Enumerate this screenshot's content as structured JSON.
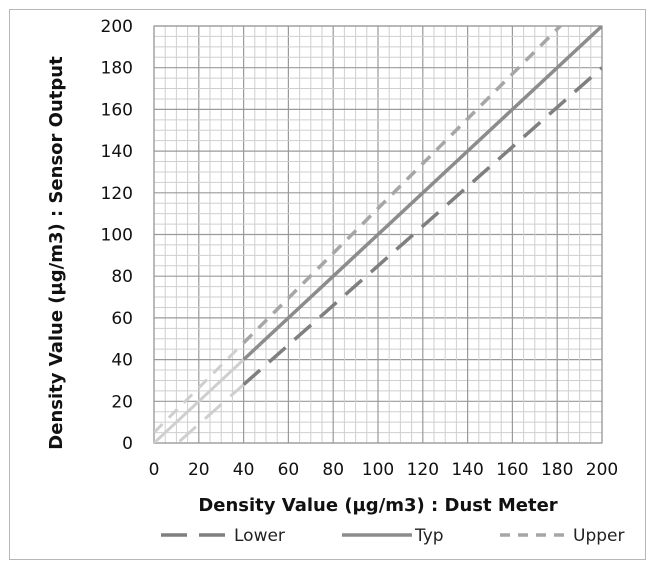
{
  "chart_data": {
    "type": "line",
    "xlabel": "Density Value (µg/m3) :  Dust Meter",
    "ylabel": "Density Value (µg/m3) :  Sensor Output",
    "xlim": [
      0,
      200
    ],
    "ylim": [
      0,
      200
    ],
    "x_ticks": [
      "0",
      "20",
      "40",
      "60",
      "80",
      "100",
      "120",
      "140",
      "160",
      "180",
      "200"
    ],
    "y_ticks": [
      "0",
      "20",
      "40",
      "60",
      "80",
      "100",
      "120",
      "140",
      "160",
      "180",
      "200"
    ],
    "grid": true,
    "legend_position": "bottom",
    "low_range_x_max": 40,
    "series": [
      {
        "name": "Lower",
        "style": "long-dash",
        "color": "#7f7f7f",
        "x": [
          0,
          200
        ],
        "y": [
          -10,
          180
        ]
      },
      {
        "name": "Typ",
        "style": "solid",
        "color": "#8c8c8c",
        "x": [
          0,
          200
        ],
        "y": [
          0,
          200
        ]
      },
      {
        "name": "Upper",
        "style": "short-dash",
        "color": "#a6a6a6",
        "x": [
          0,
          200
        ],
        "y": [
          5,
          220
        ]
      }
    ],
    "low_range_color": "#cfcfcf"
  }
}
